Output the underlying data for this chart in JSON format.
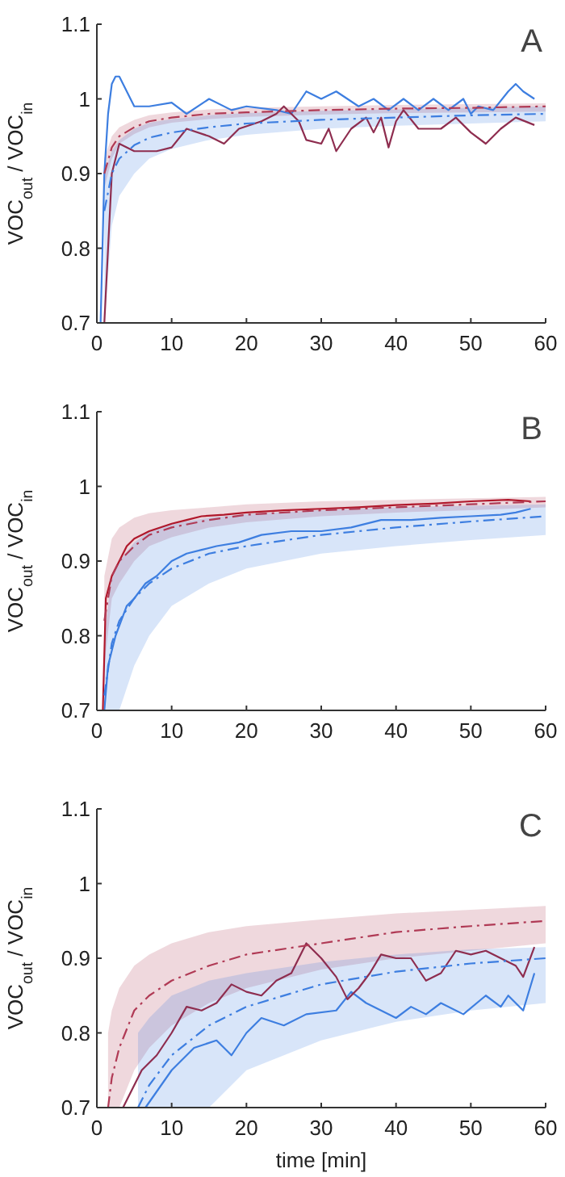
{
  "chart_data": [
    {
      "type": "line",
      "ylabel": "VOC$_{out}$ / VOC$_{in}$",
      "annotations": [
        "A"
      ],
      "xlim": [
        0,
        60
      ],
      "xticks": [
        0,
        10,
        20,
        30,
        40,
        50,
        60
      ],
      "ylim": [
        0.7,
        1.1
      ],
      "yticks": [
        0.7,
        0.8,
        0.9,
        1,
        1.1
      ],
      "grid": false,
      "series": [
        {
          "color": "#b03a55",
          "line_style": "dashed",
          "x": [
            1,
            2,
            3,
            5,
            7,
            10,
            15,
            20,
            30,
            40,
            50,
            60
          ],
          "values": [
            0.9,
            0.935,
            0.95,
            0.962,
            0.97,
            0.975,
            0.98,
            0.982,
            0.985,
            0.987,
            0.988,
            0.99
          ],
          "lower": [
            0.88,
            0.92,
            0.94,
            0.953,
            0.962,
            0.968,
            0.973,
            0.976,
            0.979,
            0.981,
            0.982,
            0.983
          ],
          "upper": [
            0.92,
            0.95,
            0.962,
            0.972,
            0.978,
            0.982,
            0.986,
            0.988,
            0.99,
            0.992,
            0.993,
            0.994
          ]
        },
        {
          "color": "#3d7ee0",
          "line_style": "dashed",
          "x": [
            1,
            2,
            3,
            5,
            7,
            10,
            15,
            20,
            30,
            40,
            50,
            60
          ],
          "values": [
            0.85,
            0.9,
            0.92,
            0.938,
            0.948,
            0.955,
            0.962,
            0.967,
            0.972,
            0.975,
            0.978,
            0.98
          ],
          "lower": [
            0.7,
            0.83,
            0.87,
            0.9,
            0.92,
            0.933,
            0.945,
            0.952,
            0.96,
            0.964,
            0.967,
            0.97
          ],
          "upper": [
            0.9,
            0.93,
            0.945,
            0.96,
            0.968,
            0.973,
            0.978,
            0.981,
            0.984,
            0.986,
            0.988,
            0.99
          ]
        },
        {
          "color": "#3d7ee0",
          "line_style": "solid",
          "x": [
            0.5,
            1,
            1.5,
            2,
            2.5,
            3,
            4,
            5,
            7,
            10,
            12,
            15,
            18,
            20,
            24,
            26,
            28,
            30,
            32,
            35,
            37,
            39,
            41,
            43,
            45,
            47,
            49,
            50,
            51,
            53,
            55,
            56,
            57,
            58.5
          ],
          "values": [
            0.7,
            0.9,
            0.98,
            1.02,
            1.03,
            1.03,
            1.01,
            0.99,
            0.99,
            0.995,
            0.98,
            1.0,
            0.985,
            0.99,
            0.985,
            0.98,
            1.01,
            1.0,
            1.01,
            0.99,
            1.0,
            0.985,
            1.0,
            0.985,
            1.0,
            0.985,
            1.0,
            0.98,
            0.99,
            0.985,
            1.01,
            1.02,
            1.01,
            1.0
          ]
        },
        {
          "color": "#8e2d4f",
          "line_style": "solid",
          "x": [
            1,
            2,
            3,
            5,
            8,
            10,
            12,
            15,
            17,
            19,
            22,
            24,
            25,
            27,
            28,
            30,
            31,
            32,
            34,
            36,
            37,
            38,
            39,
            40,
            41,
            43,
            46,
            48,
            50,
            52,
            54,
            56,
            58.5
          ],
          "values": [
            0.7,
            0.9,
            0.94,
            0.93,
            0.93,
            0.935,
            0.96,
            0.95,
            0.94,
            0.96,
            0.97,
            0.98,
            0.99,
            0.97,
            0.945,
            0.94,
            0.96,
            0.93,
            0.96,
            0.975,
            0.955,
            0.975,
            0.935,
            0.97,
            0.985,
            0.96,
            0.96,
            0.975,
            0.955,
            0.94,
            0.96,
            0.975,
            0.965
          ]
        }
      ]
    },
    {
      "type": "line",
      "ylabel": "VOC$_{out}$ / VOC$_{in}$",
      "annotations": [
        "B"
      ],
      "xlim": [
        0,
        60
      ],
      "xticks": [
        0,
        10,
        20,
        30,
        40,
        50,
        60
      ],
      "ylim": [
        0.7,
        1.1
      ],
      "yticks": [
        0.7,
        0.8,
        0.9,
        1,
        1.1
      ],
      "grid": false,
      "series": [
        {
          "color": "#b03a55",
          "line_style": "dashed",
          "x": [
            1,
            2,
            3,
            5,
            7,
            10,
            15,
            20,
            30,
            40,
            50,
            60
          ],
          "values": [
            0.82,
            0.88,
            0.9,
            0.92,
            0.935,
            0.945,
            0.955,
            0.962,
            0.968,
            0.972,
            0.976,
            0.98
          ],
          "lower": [
            0.76,
            0.85,
            0.87,
            0.9,
            0.92,
            0.932,
            0.945,
            0.952,
            0.96,
            0.965,
            0.968,
            0.972
          ],
          "upper": [
            0.88,
            0.93,
            0.945,
            0.958,
            0.964,
            0.968,
            0.972,
            0.976,
            0.98,
            0.982,
            0.984,
            0.986
          ]
        },
        {
          "color": "#3d7ee0",
          "line_style": "dashed",
          "x": [
            1,
            2,
            3,
            5,
            7,
            10,
            15,
            20,
            30,
            40,
            50,
            60
          ],
          "values": [
            0.72,
            0.79,
            0.82,
            0.85,
            0.87,
            0.89,
            0.91,
            0.92,
            0.935,
            0.945,
            0.953,
            0.96
          ],
          "lower": [
            0.7,
            0.7,
            0.7,
            0.76,
            0.8,
            0.84,
            0.87,
            0.89,
            0.91,
            0.92,
            0.928,
            0.935
          ],
          "upper": [
            0.8,
            0.88,
            0.9,
            0.925,
            0.94,
            0.95,
            0.958,
            0.963,
            0.968,
            0.972,
            0.974,
            0.976
          ]
        },
        {
          "color": "#3d7ee0",
          "line_style": "solid",
          "x": [
            1,
            1.5,
            2.5,
            4,
            5,
            6.5,
            8,
            10,
            12,
            14,
            16,
            19,
            22,
            26,
            30,
            34,
            38,
            42,
            46,
            50,
            54,
            56,
            58
          ],
          "values": [
            0.7,
            0.76,
            0.8,
            0.84,
            0.85,
            0.87,
            0.88,
            0.9,
            0.91,
            0.915,
            0.92,
            0.925,
            0.935,
            0.94,
            0.94,
            0.945,
            0.955,
            0.955,
            0.958,
            0.96,
            0.962,
            0.965,
            0.97
          ]
        },
        {
          "color": "#b0182b",
          "line_style": "solid",
          "x": [
            0.8,
            1.2,
            2,
            3,
            4,
            5,
            7,
            10,
            12,
            14,
            17,
            20,
            25,
            30,
            35,
            40,
            45,
            50,
            55,
            58
          ],
          "values": [
            0.7,
            0.85,
            0.88,
            0.9,
            0.92,
            0.93,
            0.94,
            0.95,
            0.955,
            0.96,
            0.962,
            0.965,
            0.968,
            0.97,
            0.972,
            0.975,
            0.977,
            0.98,
            0.982,
            0.98
          ]
        }
      ]
    },
    {
      "type": "line",
      "xlabel": "time [min]",
      "ylabel": "VOC$_{out}$ / VOC$_{in}$",
      "annotations": [
        "C"
      ],
      "xlim": [
        0,
        60
      ],
      "xticks": [
        0,
        10,
        20,
        30,
        40,
        50,
        60
      ],
      "ylim": [
        0.7,
        1.1
      ],
      "yticks": [
        0.7,
        0.8,
        0.9,
        1,
        1.1
      ],
      "grid": false,
      "series": [
        {
          "color": "#b03a55",
          "line_style": "dashed",
          "x": [
            1.5,
            2,
            3,
            5,
            7,
            10,
            15,
            20,
            30,
            40,
            50,
            60
          ],
          "values": [
            0.7,
            0.74,
            0.78,
            0.83,
            0.85,
            0.87,
            0.89,
            0.905,
            0.92,
            0.935,
            0.943,
            0.95
          ],
          "lower": [
            0.7,
            0.7,
            0.7,
            0.75,
            0.78,
            0.81,
            0.84,
            0.86,
            0.885,
            0.9,
            0.91,
            0.92
          ],
          "upper": [
            0.8,
            0.83,
            0.86,
            0.89,
            0.905,
            0.92,
            0.935,
            0.943,
            0.952,
            0.96,
            0.965,
            0.97
          ]
        },
        {
          "color": "#3d7ee0",
          "line_style": "dashed",
          "x": [
            5.5,
            7,
            10,
            15,
            20,
            30,
            40,
            50,
            60
          ],
          "values": [
            0.7,
            0.73,
            0.77,
            0.81,
            0.835,
            0.865,
            0.882,
            0.893,
            0.9
          ],
          "lower": [
            0.7,
            0.7,
            0.7,
            0.7,
            0.75,
            0.79,
            0.815,
            0.83,
            0.84
          ],
          "upper": [
            0.8,
            0.82,
            0.85,
            0.87,
            0.88,
            0.895,
            0.905,
            0.912,
            0.915
          ]
        },
        {
          "color": "#3d7ee0",
          "line_style": "solid",
          "x": [
            6.5,
            10,
            13,
            16,
            18,
            20,
            22,
            25,
            28,
            32,
            34,
            36,
            38,
            40,
            42,
            44,
            46,
            49,
            52,
            54,
            55,
            57,
            58.5
          ],
          "values": [
            0.7,
            0.75,
            0.78,
            0.79,
            0.77,
            0.8,
            0.82,
            0.81,
            0.825,
            0.83,
            0.855,
            0.84,
            0.83,
            0.82,
            0.835,
            0.825,
            0.84,
            0.825,
            0.85,
            0.835,
            0.85,
            0.83,
            0.88
          ]
        },
        {
          "color": "#8e2d4f",
          "line_style": "solid",
          "x": [
            3.5,
            6,
            8,
            10,
            12,
            14,
            16,
            18,
            20,
            22,
            24,
            26,
            28,
            30,
            32,
            33.5,
            35,
            36.5,
            38,
            40,
            42,
            44,
            46,
            48,
            50,
            52,
            54,
            56,
            57,
            58.5
          ],
          "values": [
            0.7,
            0.75,
            0.77,
            0.8,
            0.835,
            0.83,
            0.84,
            0.865,
            0.855,
            0.85,
            0.87,
            0.88,
            0.92,
            0.9,
            0.875,
            0.845,
            0.86,
            0.88,
            0.905,
            0.9,
            0.9,
            0.87,
            0.88,
            0.91,
            0.905,
            0.91,
            0.9,
            0.89,
            0.875,
            0.915
          ]
        }
      ]
    }
  ]
}
